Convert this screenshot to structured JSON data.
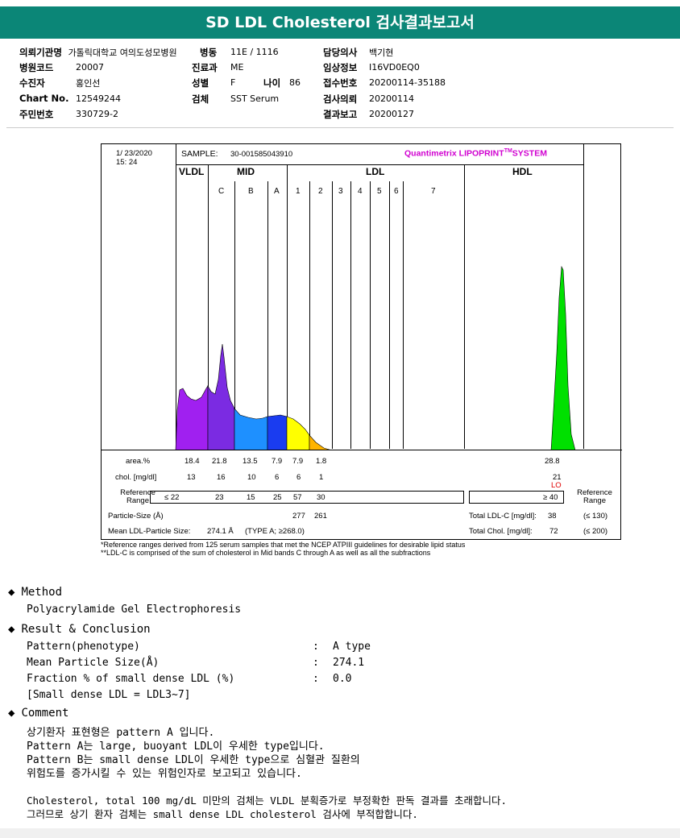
{
  "title": "SD LDL Cholesterol 검사결과보고서",
  "header": {
    "col1": [
      {
        "label": "의뢰기관명",
        "value": "가톨릭대학교 여의도성모병원"
      },
      {
        "label": "병원코드",
        "value": "20007"
      },
      {
        "label": "수진자",
        "value": "홍인선"
      },
      {
        "label": "Chart No.",
        "value": "12549244"
      },
      {
        "label": "주민번호",
        "value": "330729-2"
      }
    ],
    "col2": [
      {
        "label": "병동",
        "value": "11E / 1116"
      },
      {
        "label": "진료과",
        "value": "ME"
      },
      {
        "label": "성별",
        "value": "F"
      },
      {
        "label": "검체",
        "value": "SST Serum"
      }
    ],
    "age_label": "나이",
    "age_value": "86",
    "col3": [
      {
        "label": "담당의사",
        "value": "백기현"
      },
      {
        "label": "임상정보",
        "value": "I16VD0EQ0"
      },
      {
        "label": "접수번호",
        "value": "20200114-35188"
      },
      {
        "label": "검사의뢰",
        "value": "20200114"
      },
      {
        "label": "결과보고",
        "value": "20200127"
      }
    ]
  },
  "panel": {
    "date": "1/ 23/2020",
    "time": "15: 24",
    "sample_label": "SAMPLE:",
    "sample_id": "30-001585043910",
    "brand": "Quantimetrix LIPOPRINT",
    "brand_tm": "TM",
    "brand_suffix": "SYSTEM",
    "bands": {
      "vldl": "VLDL",
      "mid": "MID",
      "ldl": "LDL",
      "hdl": "HDL"
    },
    "mid_sub": [
      "C",
      "B",
      "A"
    ],
    "ldl_sub": [
      "1",
      "2",
      "3",
      "4",
      "5",
      "6",
      "7"
    ],
    "row_labels": {
      "area": "area.%",
      "chol": "chol. [mg/dl]",
      "ref": "Reference Range",
      "ref_right": "Reference Range"
    },
    "area_values": [
      "18.4",
      "21.8",
      "13.5",
      "7.9",
      "7.9",
      "1.8"
    ],
    "hdl_area": "28.8",
    "chol_values": [
      "13",
      "16",
      "10",
      "6",
      "6",
      "1"
    ],
    "hdl_chol": "21",
    "hdl_flag": "LO",
    "ref_values": [
      "≤ 22",
      "23",
      "15",
      "25",
      "57",
      "30"
    ],
    "hdl_ref": "≥ 40",
    "particle_size_label": "Particle-Size (Å)",
    "particle_sizes": [
      "277",
      "261"
    ],
    "mean_label": "Mean LDL-Particle Size:",
    "mean_value": "274.1 Å",
    "mean_type": "(TYPE A; ≥268.0)",
    "total_ldl_label": "Total LDL-C [mg/dl]:",
    "total_ldl_value": "38",
    "total_ldl_ref": "(≤ 130)",
    "total_chol_label": "Total Chol. [mg/dl]:",
    "total_chol_value": "72",
    "total_chol_ref": "(≤ 200)",
    "colors": {
      "vldl": "#a020f0",
      "midc": "#7b2be2",
      "midb": "#1e90ff",
      "mida": "#1a3cf0",
      "ldl1": "#ffff00",
      "ldl2": "#ffb400",
      "hdl": "#00e000"
    }
  },
  "footnotes": [
    "*Reference ranges derived from 125 serum samples that met the NCEP ATPIII guidelines for desirable lipid status",
    "**LDL-C is comprised of the sum of cholesterol in Mid bands C through A as well as all the subfractions"
  ],
  "method": {
    "heading": "Method",
    "text": "Polyacrylamide Gel Electrophoresis"
  },
  "result": {
    "heading": "Result & Conclusion",
    "rows": [
      {
        "label": "Pattern(phenotype)",
        "value": "A type"
      },
      {
        "label": "Mean Particle Size(Å)",
        "value": "274.1"
      },
      {
        "label": "Fraction % of small dense LDL (%)",
        "value": "0.0"
      }
    ],
    "note": "[Small dense LDL = LDL3~7]"
  },
  "comment": {
    "heading": "Comment",
    "lines": [
      "상기환자 표현형은 pattern A 입니다.",
      "Pattern A는 large, buoyant LDL이 우세한 type입니다.",
      "Pattern B는 small dense LDL이 우세한 type으로 심혈관 질환의",
      "위험도를 증가시킬 수 있는 위험인자로 보고되고 있습니다.",
      "",
      "Cholesterol, total 100 mg/dL 미만의 검체는 VLDL 분획증가로 부정확한 판독 결과를 초래합니다.",
      "그러므로 상기 환자 검체는 small dense LDL cholesterol 검사에 부적합합니다."
    ]
  }
}
